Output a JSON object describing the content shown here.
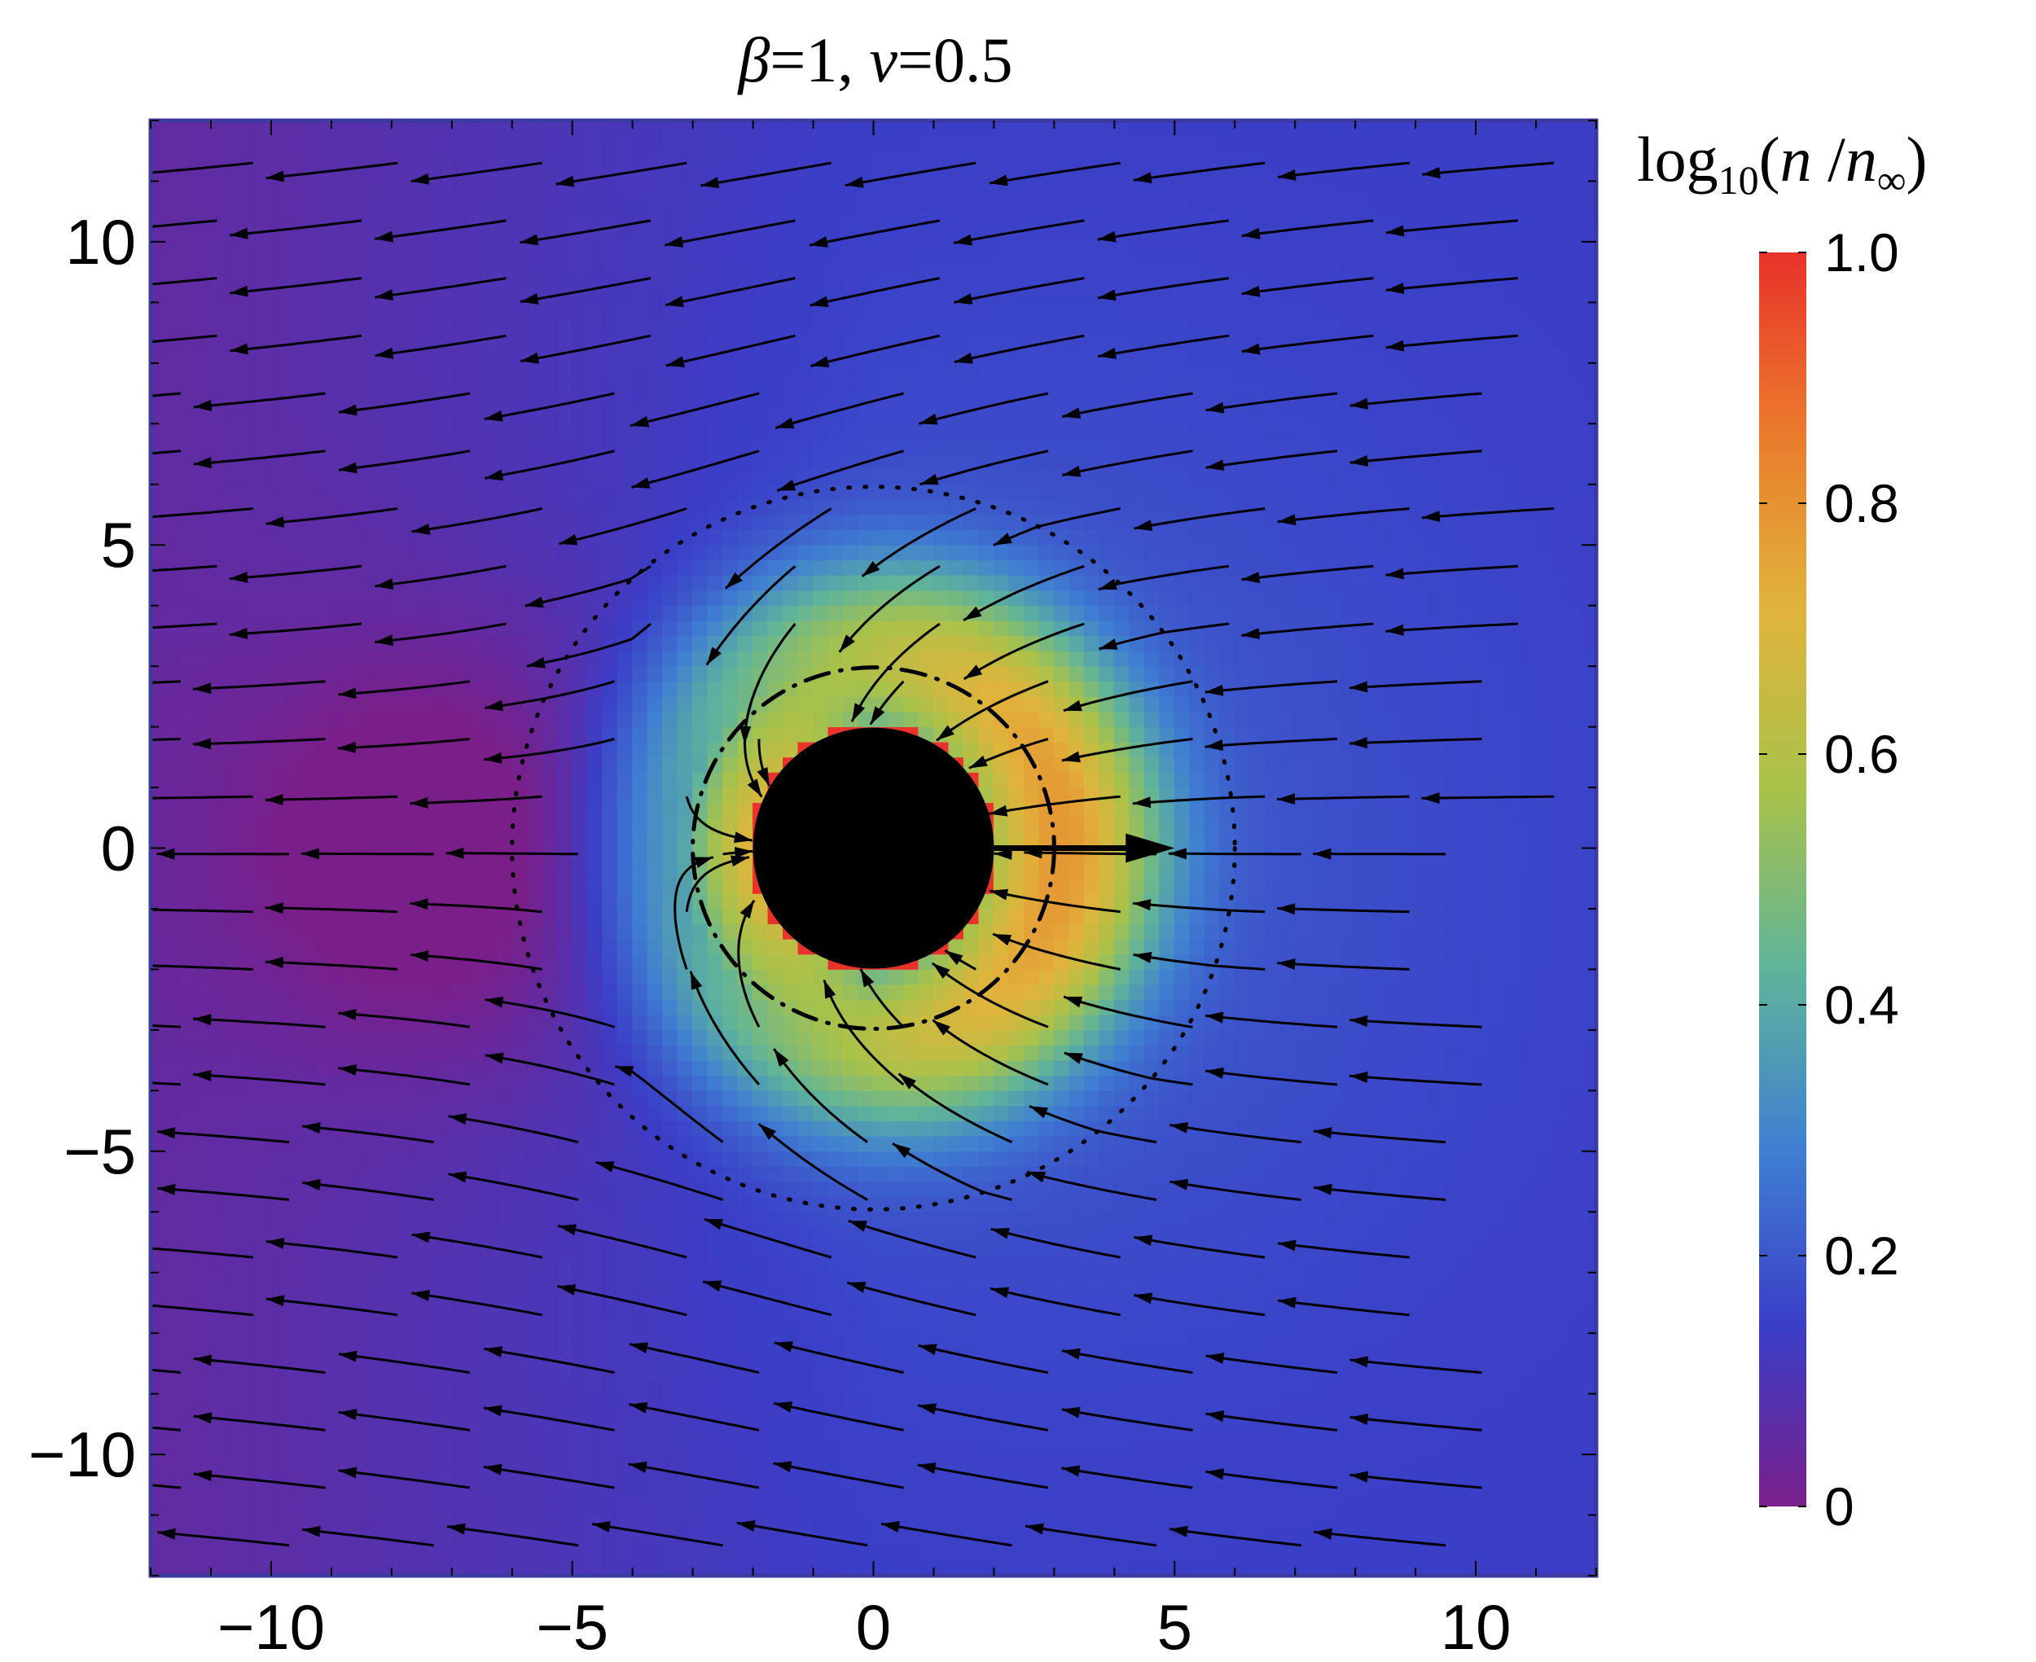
{
  "chart_data": {
    "type": "heatmap",
    "title": "β=1, v=0.5",
    "title_parts": [
      "β",
      "=1, ",
      "v",
      "=0.5"
    ],
    "colorbar": {
      "label_prefix": "log",
      "label_sub": "10",
      "label_rest": "(",
      "label_n": "n",
      "label_slash": " /",
      "label_ninf": "n",
      "label_ninf_sub": "∞",
      "label_close": ")",
      "range": [
        0,
        1.0
      ],
      "ticks": [
        "0",
        "0.2",
        "0.4",
        "0.6",
        "0.8",
        "1.0"
      ],
      "tick_values": [
        0,
        0.2,
        0.4,
        0.6,
        0.8,
        1.0
      ],
      "colors": [
        "#7a1f8a",
        "#3b3ec7",
        "#3f7fd2",
        "#5fb49a",
        "#a8c24a",
        "#e0b43c",
        "#ea7a2c",
        "#e8322a"
      ]
    },
    "xlim": [
      -12,
      12
    ],
    "ylim": [
      -12,
      12
    ],
    "xticks": [
      "−10",
      "−5",
      "0",
      "5",
      "10"
    ],
    "xtick_values": [
      -10,
      -5,
      0,
      5,
      10
    ],
    "yticks": [
      "10",
      "5",
      "0",
      "−5",
      "−10"
    ],
    "ytick_values": [
      10,
      5,
      0,
      -5,
      -10
    ],
    "obstacle": {
      "center": [
        0,
        0
      ],
      "radius": 2,
      "color": "#000000"
    },
    "velocity_arrow": {
      "from": [
        2,
        0
      ],
      "to": [
        5,
        0
      ]
    },
    "dotdash_circle_radius": 3,
    "dotted_circle_radius": 6,
    "frame_color": "#3a3aa0"
  }
}
